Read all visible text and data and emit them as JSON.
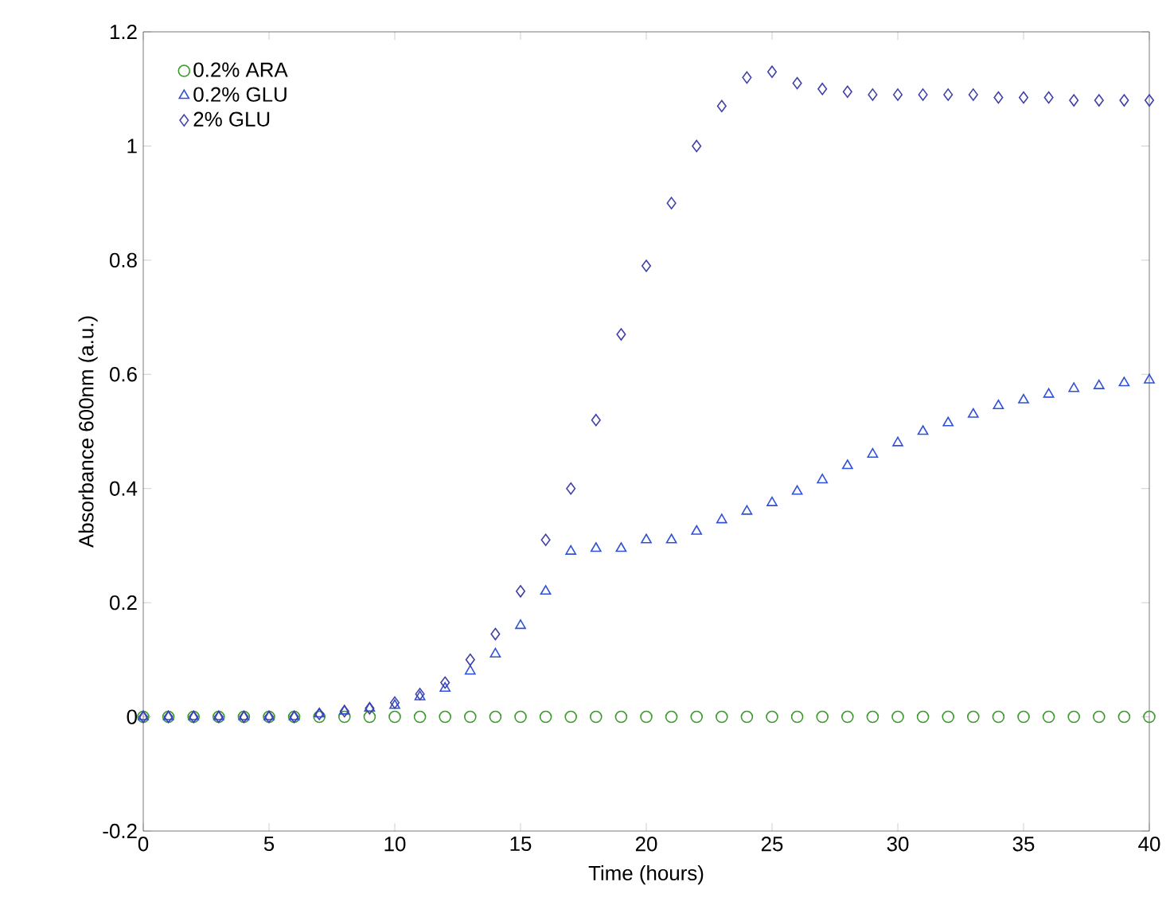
{
  "chart_data": {
    "type": "scatter",
    "xlabel": "Time (hours)",
    "ylabel": "Absorbance 600nm (a.u.)",
    "x": [
      0,
      1,
      2,
      3,
      4,
      5,
      6,
      7,
      8,
      9,
      10,
      11,
      12,
      13,
      14,
      15,
      16,
      17,
      18,
      19,
      20,
      21,
      22,
      23,
      24,
      25,
      26,
      27,
      28,
      29,
      30,
      31,
      32,
      33,
      34,
      35,
      36,
      37,
      38,
      39,
      40
    ],
    "series": [
      {
        "name": "0.2% ARA",
        "color": "#3a9a2a",
        "marker": "circle",
        "values": [
          0,
          0,
          0,
          0,
          0,
          0,
          0,
          0,
          0,
          0,
          0,
          0,
          0,
          0,
          0,
          0,
          0,
          0,
          0,
          0,
          0,
          0,
          0,
          0,
          0,
          0,
          0,
          0,
          0,
          0,
          0,
          0,
          0,
          0,
          0,
          0,
          0,
          0,
          0,
          0,
          0
        ]
      },
      {
        "name": "0.2% GLU",
        "color": "#3050d8",
        "marker": "triangle",
        "values": [
          0,
          0,
          0,
          0,
          0,
          0,
          0,
          0.005,
          0.01,
          0.015,
          0.02,
          0.035,
          0.05,
          0.08,
          0.11,
          0.16,
          0.22,
          0.29,
          0.295,
          0.295,
          0.31,
          0.31,
          0.325,
          0.345,
          0.36,
          0.375,
          0.395,
          0.415,
          0.44,
          0.46,
          0.48,
          0.5,
          0.515,
          0.53,
          0.545,
          0.555,
          0.565,
          0.575,
          0.58,
          0.585,
          0.59
        ]
      },
      {
        "name": "2% GLU",
        "color": "#4040a8",
        "marker": "diamond",
        "values": [
          0,
          0,
          0,
          0,
          0,
          0,
          0,
          0.005,
          0.01,
          0.015,
          0.025,
          0.04,
          0.06,
          0.1,
          0.145,
          0.22,
          0.31,
          0.4,
          0.52,
          0.67,
          0.79,
          0.9,
          1.0,
          1.07,
          1.12,
          1.13,
          1.11,
          1.1,
          1.095,
          1.09,
          1.09,
          1.09,
          1.09,
          1.09,
          1.085,
          1.085,
          1.085,
          1.08,
          1.08,
          1.08,
          1.08
        ]
      }
    ],
    "xlim": [
      0,
      40
    ],
    "xticks": [
      0,
      5,
      10,
      15,
      20,
      25,
      30,
      35,
      40
    ],
    "ylim": [
      -0.2,
      1.2
    ],
    "yticks": [
      -0.2,
      0,
      0.2,
      0.4,
      0.6,
      0.8,
      1,
      1.2
    ],
    "legend": "top left",
    "grid": false
  }
}
